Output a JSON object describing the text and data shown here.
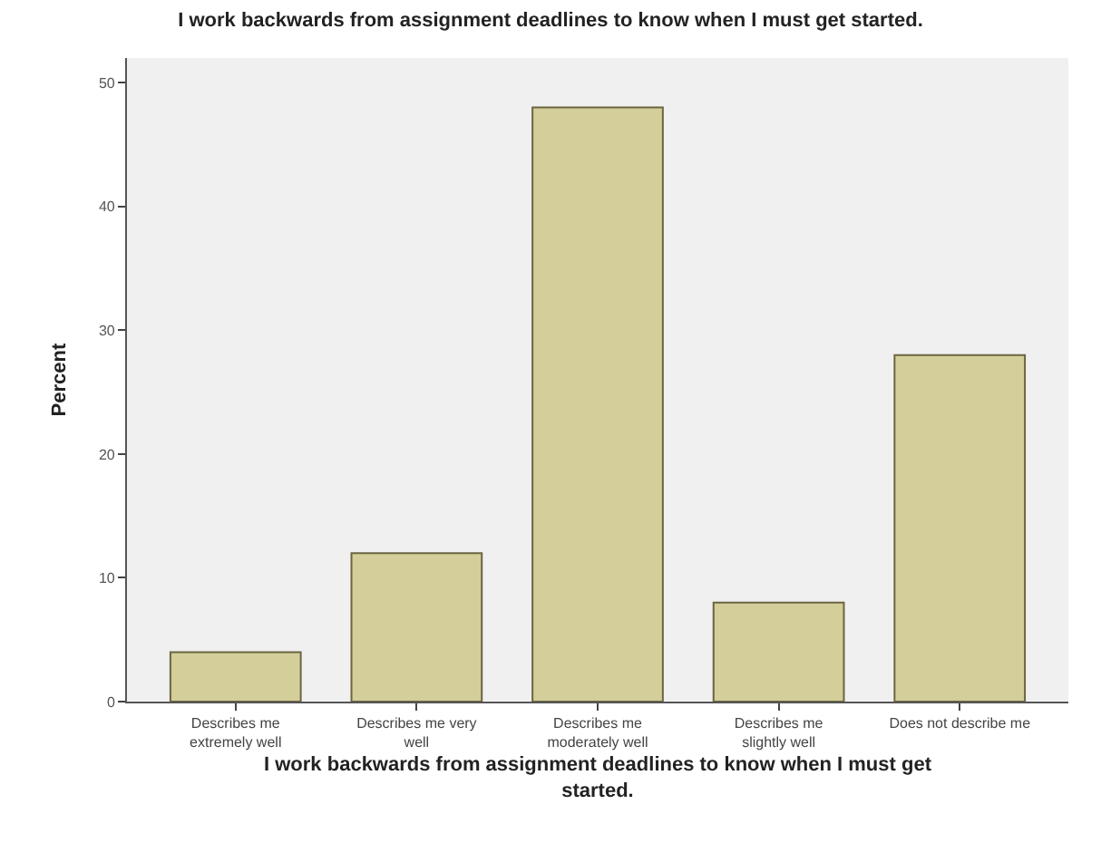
{
  "chart_data": {
    "type": "bar",
    "title": "I work backwards from assignment deadlines to know when I must get started.",
    "xlabel": "I work backwards from assignment deadlines to know when I must get started.",
    "ylabel": "Percent",
    "categories": [
      "Describes me extremely well",
      "Describes me very well",
      "Describes me moderately well",
      "Describes me slightly well",
      "Does not describe me"
    ],
    "values": [
      4,
      12,
      48,
      8,
      28
    ],
    "color": "#d3ce9a",
    "ylim": [
      0,
      52
    ],
    "yticks": [
      0,
      10,
      20,
      30,
      40,
      50
    ],
    "grid": false,
    "legend": false
  }
}
